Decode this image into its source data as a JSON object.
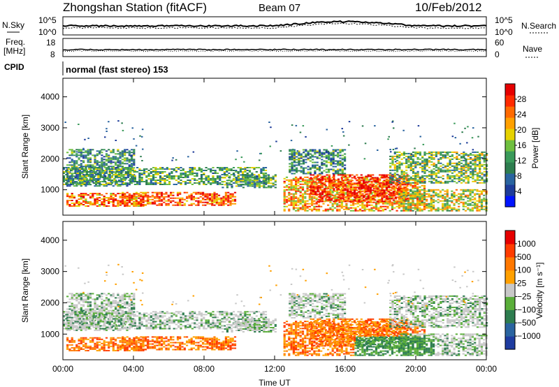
{
  "header": {
    "station": "Zhongshan Station (fitACF)",
    "beam": "Beam 07",
    "date": "10/Feb/2012"
  },
  "side_labels": {
    "nsky": "N.Sky",
    "nsearch": "N.Search",
    "freq_line1": "Freq.",
    "freq_line2": "[MHz]",
    "nave": "Nave",
    "cpid": "CPID",
    "cpid_value": "normal (fast stereo) 153"
  },
  "noise_panel": {
    "left_ticks": [
      "10^5",
      "10^0"
    ],
    "right_ticks": [
      "10^5",
      "10^0"
    ]
  },
  "freq_panel": {
    "left_ticks": [
      "18",
      "8"
    ],
    "right_ticks": [
      "60",
      "0"
    ]
  },
  "chart_data": [
    {
      "type": "heatmap",
      "parameter": "power",
      "ylabel": "Slant Range [km]",
      "yticks": [
        1000,
        2000,
        3000,
        4000
      ],
      "ylim": [
        180,
        4600
      ],
      "xticks": [
        "00:00",
        "04:00",
        "08:00",
        "12:00",
        "16:00",
        "20:00",
        "00:00"
      ],
      "xlim_hours": [
        0,
        24
      ],
      "colorbar": {
        "label": "Power [dB]",
        "ticks": [
          "28",
          "24",
          "20",
          "16",
          "12",
          "8",
          "4"
        ],
        "range": [
          0,
          30
        ],
        "colors": [
          "#0014ff",
          "#1e3c9a",
          "#2a64a0",
          "#2e7d4f",
          "#3a9a5a",
          "#6fbf3f",
          "#e6d200",
          "#ffa000",
          "#ff6a00",
          "#ff2a00",
          "#e60000"
        ]
      }
    },
    {
      "type": "heatmap",
      "parameter": "velocity",
      "ylabel": "Slant Range [km]",
      "yticks": [
        1000,
        2000,
        3000,
        4000
      ],
      "ylim": [
        180,
        4600
      ],
      "xticks": [
        "00:00",
        "04:00",
        "08:00",
        "12:00",
        "16:00",
        "20:00",
        "00:00"
      ],
      "xlabel": "Time UT",
      "xlim_hours": [
        0,
        24
      ],
      "colorbar": {
        "label": "Velocity [m s⁻¹]",
        "ticks": [
          "1000",
          "500",
          "100",
          "25",
          "−25",
          "−100",
          "−500",
          "−1000"
        ],
        "colors": [
          "#1e3ca0",
          "#2a64a0",
          "#2e7d4f",
          "#5aae3a",
          "#c8c8c8",
          "#ffa000",
          "#ff7800",
          "#ff3c00",
          "#e60000"
        ]
      }
    }
  ]
}
